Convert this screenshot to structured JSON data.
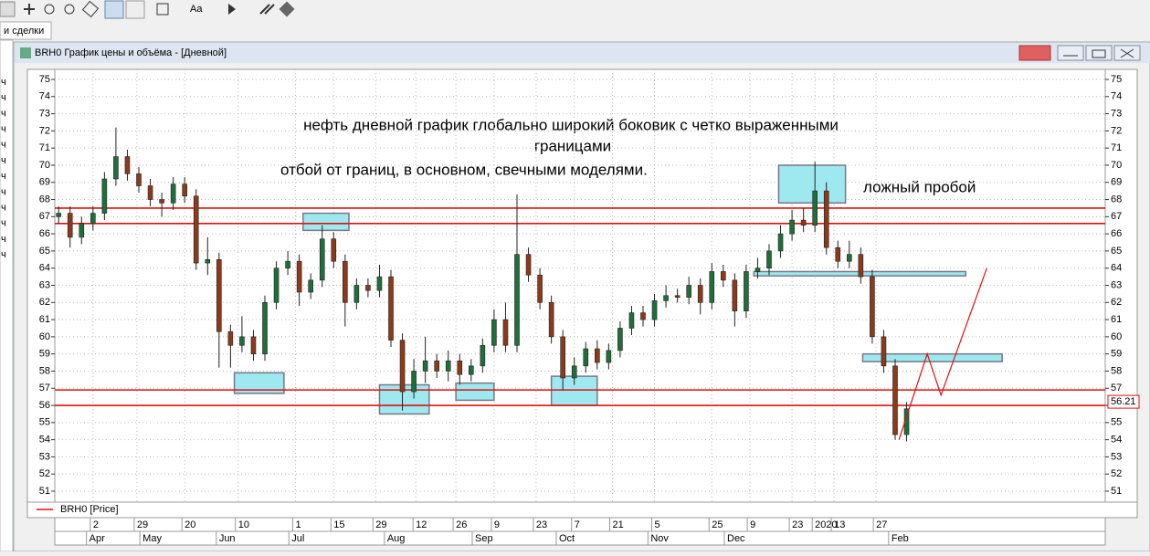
{
  "toolbar": {
    "font_button": "Aa"
  },
  "tab": "и сделки",
  "sidebar_items": [
    "ч",
    "ч",
    "ч",
    "ч",
    "ч",
    "ч",
    "ч",
    "ч",
    "ч",
    "ч",
    "ч",
    "ч"
  ],
  "window": {
    "title": "BRH0 График цены и объёма - [Дневной]"
  },
  "chart_data": {
    "type": "candlestick",
    "series_name": "BRH0 [Price]",
    "legend_color": "#e01010",
    "up_color": "#1f6f3a",
    "down_color": "#8b3a1a",
    "grid": true,
    "annotations": [
      "нефть дневной график глобально широкий боковик с четко выраженными",
      "границами",
      "отбой от границ, в основном, свечными моделями.",
      "ложный пробой"
    ],
    "annotation_color": "#a01010",
    "xlim": [
      0,
      275
    ],
    "ylim": [
      51,
      75
    ],
    "yticks": [
      51,
      52,
      53,
      54,
      55,
      56,
      57,
      58,
      59,
      60,
      61,
      62,
      63,
      64,
      65,
      66,
      67,
      68,
      69,
      70,
      71,
      72,
      73,
      74,
      75
    ],
    "xticks": [
      {
        "value": 10,
        "label": "2"
      },
      {
        "value": 21.5,
        "label": "29"
      },
      {
        "value": 34,
        "label": "20"
      },
      {
        "value": 48,
        "label": "10"
      },
      {
        "value": 63,
        "label": "1"
      },
      {
        "value": 73,
        "label": "15"
      },
      {
        "value": 84,
        "label": "29"
      },
      {
        "value": 94.5,
        "label": "12"
      },
      {
        "value": 105,
        "label": "26"
      },
      {
        "value": 115,
        "label": "9"
      },
      {
        "value": 126,
        "label": "23"
      },
      {
        "value": 136,
        "label": "7"
      },
      {
        "value": 146,
        "label": "21"
      },
      {
        "value": 157,
        "label": "5"
      },
      {
        "value": 172,
        "label": "25"
      },
      {
        "value": 182,
        "label": "9"
      },
      {
        "value": 193,
        "label": "23"
      },
      {
        "value": 199,
        "label": "2020"
      },
      {
        "value": 204,
        "label": "13"
      },
      {
        "value": 215,
        "label": "27"
      }
    ],
    "month_ticks": [
      {
        "value": 9,
        "label": "Apr"
      },
      {
        "value": 23,
        "label": "May"
      },
      {
        "value": 43,
        "label": "Jun"
      },
      {
        "value": 62,
        "label": "Jul"
      },
      {
        "value": 87,
        "label": "Aug"
      },
      {
        "value": 110,
        "label": "Sep"
      },
      {
        "value": 132,
        "label": "Oct"
      },
      {
        "value": 156,
        "label": "Nov"
      },
      {
        "value": 176,
        "label": "Dec"
      },
      {
        "value": 219,
        "label": "Feb"
      }
    ],
    "x": [
      1,
      4,
      7,
      10,
      13,
      16,
      19,
      22,
      25,
      28,
      31,
      34,
      37,
      40,
      43,
      46,
      49,
      52,
      55,
      58,
      61,
      64,
      67,
      70,
      73,
      76,
      79,
      82,
      85,
      88,
      91,
      94,
      97,
      100,
      103,
      106,
      109,
      112,
      115,
      118,
      121,
      124,
      127,
      130,
      133,
      136,
      139,
      142,
      145,
      148,
      151,
      154,
      157,
      160,
      163,
      166,
      169,
      172,
      175,
      178,
      181,
      184,
      187,
      190,
      193,
      196,
      199,
      202,
      205,
      208,
      211,
      214,
      217,
      220,
      223
    ],
    "open": [
      67.0,
      67.2,
      65.8,
      66.6,
      67.2,
      69.2,
      70.5,
      69.5,
      68.8,
      68.0,
      67.8,
      68.9,
      68.2,
      64.3,
      64.5,
      60.3,
      59.5,
      60.0,
      59.0,
      62.0,
      64.0,
      64.4,
      62.6,
      63.3,
      65.7,
      64.4,
      62.0,
      63.0,
      62.7,
      63.5,
      59.8,
      56.8,
      58.0,
      58.6,
      58.0,
      58.6,
      57.8,
      58.3,
      59.5,
      61.0,
      59.5,
      64.8,
      63.6,
      62.0,
      60.0,
      57.6,
      58.3,
      59.3,
      58.5,
      59.2,
      60.5,
      61.4,
      61.0,
      62.1,
      62.4,
      62.3,
      63.0,
      62.0,
      63.8,
      63.3,
      61.5,
      63.8,
      64.0,
      65.0,
      66.0,
      66.8,
      66.5,
      68.5,
      65.2,
      64.4,
      64.8,
      63.5,
      60.0,
      58.3,
      54.3
    ],
    "high": [
      67.6,
      67.6,
      67.0,
      67.6,
      69.6,
      72.2,
      70.9,
      69.9,
      69.2,
      68.4,
      69.3,
      69.3,
      68.6,
      65.8,
      64.9,
      60.7,
      61.2,
      60.4,
      62.4,
      64.4,
      65.0,
      64.8,
      63.7,
      66.5,
      66.1,
      64.8,
      63.4,
      63.4,
      64.2,
      63.9,
      60.2,
      58.7,
      60.0,
      59.0,
      59.2,
      59.0,
      58.7,
      59.9,
      61.6,
      62.0,
      68.3,
      65.2,
      64.0,
      62.4,
      60.4,
      58.8,
      59.7,
      59.8,
      59.6,
      60.9,
      61.8,
      61.8,
      62.5,
      63.0,
      62.8,
      63.5,
      63.4,
      64.3,
      64.2,
      63.7,
      64.2,
      64.6,
      65.4,
      66.5,
      67.4,
      67.5,
      70.2,
      69.0,
      65.6,
      65.6,
      65.2,
      63.9,
      60.4,
      58.7,
      56.2
    ],
    "low": [
      66.6,
      65.2,
      65.4,
      66.2,
      66.8,
      68.8,
      69.1,
      68.4,
      67.6,
      67.0,
      67.4,
      67.8,
      63.9,
      63.6,
      58.2,
      58.2,
      59.1,
      58.6,
      58.6,
      61.6,
      63.6,
      61.8,
      62.2,
      62.9,
      64.0,
      60.6,
      61.6,
      62.3,
      62.3,
      59.4,
      55.7,
      56.4,
      57.3,
      57.6,
      57.4,
      57.2,
      57.4,
      57.9,
      59.1,
      59.1,
      59.1,
      63.2,
      61.6,
      59.6,
      56.9,
      57.2,
      57.9,
      58.1,
      58.1,
      58.8,
      60.1,
      60.6,
      60.6,
      61.7,
      62.0,
      61.9,
      61.3,
      61.6,
      62.9,
      60.6,
      61.1,
      63.4,
      63.6,
      64.6,
      65.6,
      66.1,
      66.1,
      64.8,
      64.0,
      64.0,
      63.1,
      59.6,
      57.9,
      54.0,
      53.9
    ],
    "close": [
      67.2,
      65.8,
      66.6,
      67.2,
      69.2,
      70.5,
      69.5,
      68.8,
      68.0,
      67.8,
      68.9,
      68.2,
      64.3,
      64.5,
      60.3,
      59.5,
      60.0,
      59.0,
      62.0,
      64.0,
      64.4,
      62.6,
      63.3,
      65.7,
      64.4,
      62.0,
      63.0,
      62.7,
      63.5,
      59.8,
      56.8,
      58.0,
      58.6,
      58.0,
      58.6,
      57.8,
      58.3,
      59.5,
      61.0,
      59.5,
      64.8,
      63.6,
      62.0,
      60.0,
      57.6,
      58.3,
      59.3,
      58.5,
      59.2,
      60.5,
      61.4,
      61.0,
      62.1,
      62.4,
      62.3,
      63.0,
      62.0,
      63.8,
      63.3,
      61.5,
      63.8,
      64.0,
      65.0,
      66.0,
      66.8,
      66.5,
      68.5,
      65.2,
      64.4,
      64.8,
      63.5,
      60.0,
      58.3,
      54.3,
      55.8
    ],
    "levels": [
      67.5,
      66.6,
      56.9,
      56.0
    ],
    "level_color": "#e01010",
    "zones": [
      {
        "x": [
          65,
          77
        ],
        "y": [
          66.2,
          67.2
        ]
      },
      {
        "x": [
          47,
          60
        ],
        "y": [
          56.7,
          57.9
        ]
      },
      {
        "x": [
          85,
          98
        ],
        "y": [
          55.5,
          57.2
        ]
      },
      {
        "x": [
          105,
          115
        ],
        "y": [
          56.3,
          57.3
        ]
      },
      {
        "x": [
          130,
          142
        ],
        "y": [
          56.0,
          57.7
        ]
      },
      {
        "x": [
          189.5,
          207
        ],
        "y": [
          67.8,
          70.0
        ]
      },
      {
        "x": [
          183,
          238.5
        ],
        "y": [
          63.55,
          63.8
        ]
      },
      {
        "x": [
          211.5,
          248
        ],
        "y": [
          58.55,
          59.0
        ]
      }
    ],
    "zone_color": "#9ee8ef",
    "projection": {
      "x": [
        221,
        228.4,
        232,
        244
      ],
      "values": [
        54.0,
        59.0,
        56.6,
        64.0
      ]
    },
    "last_price": 56.21
  }
}
